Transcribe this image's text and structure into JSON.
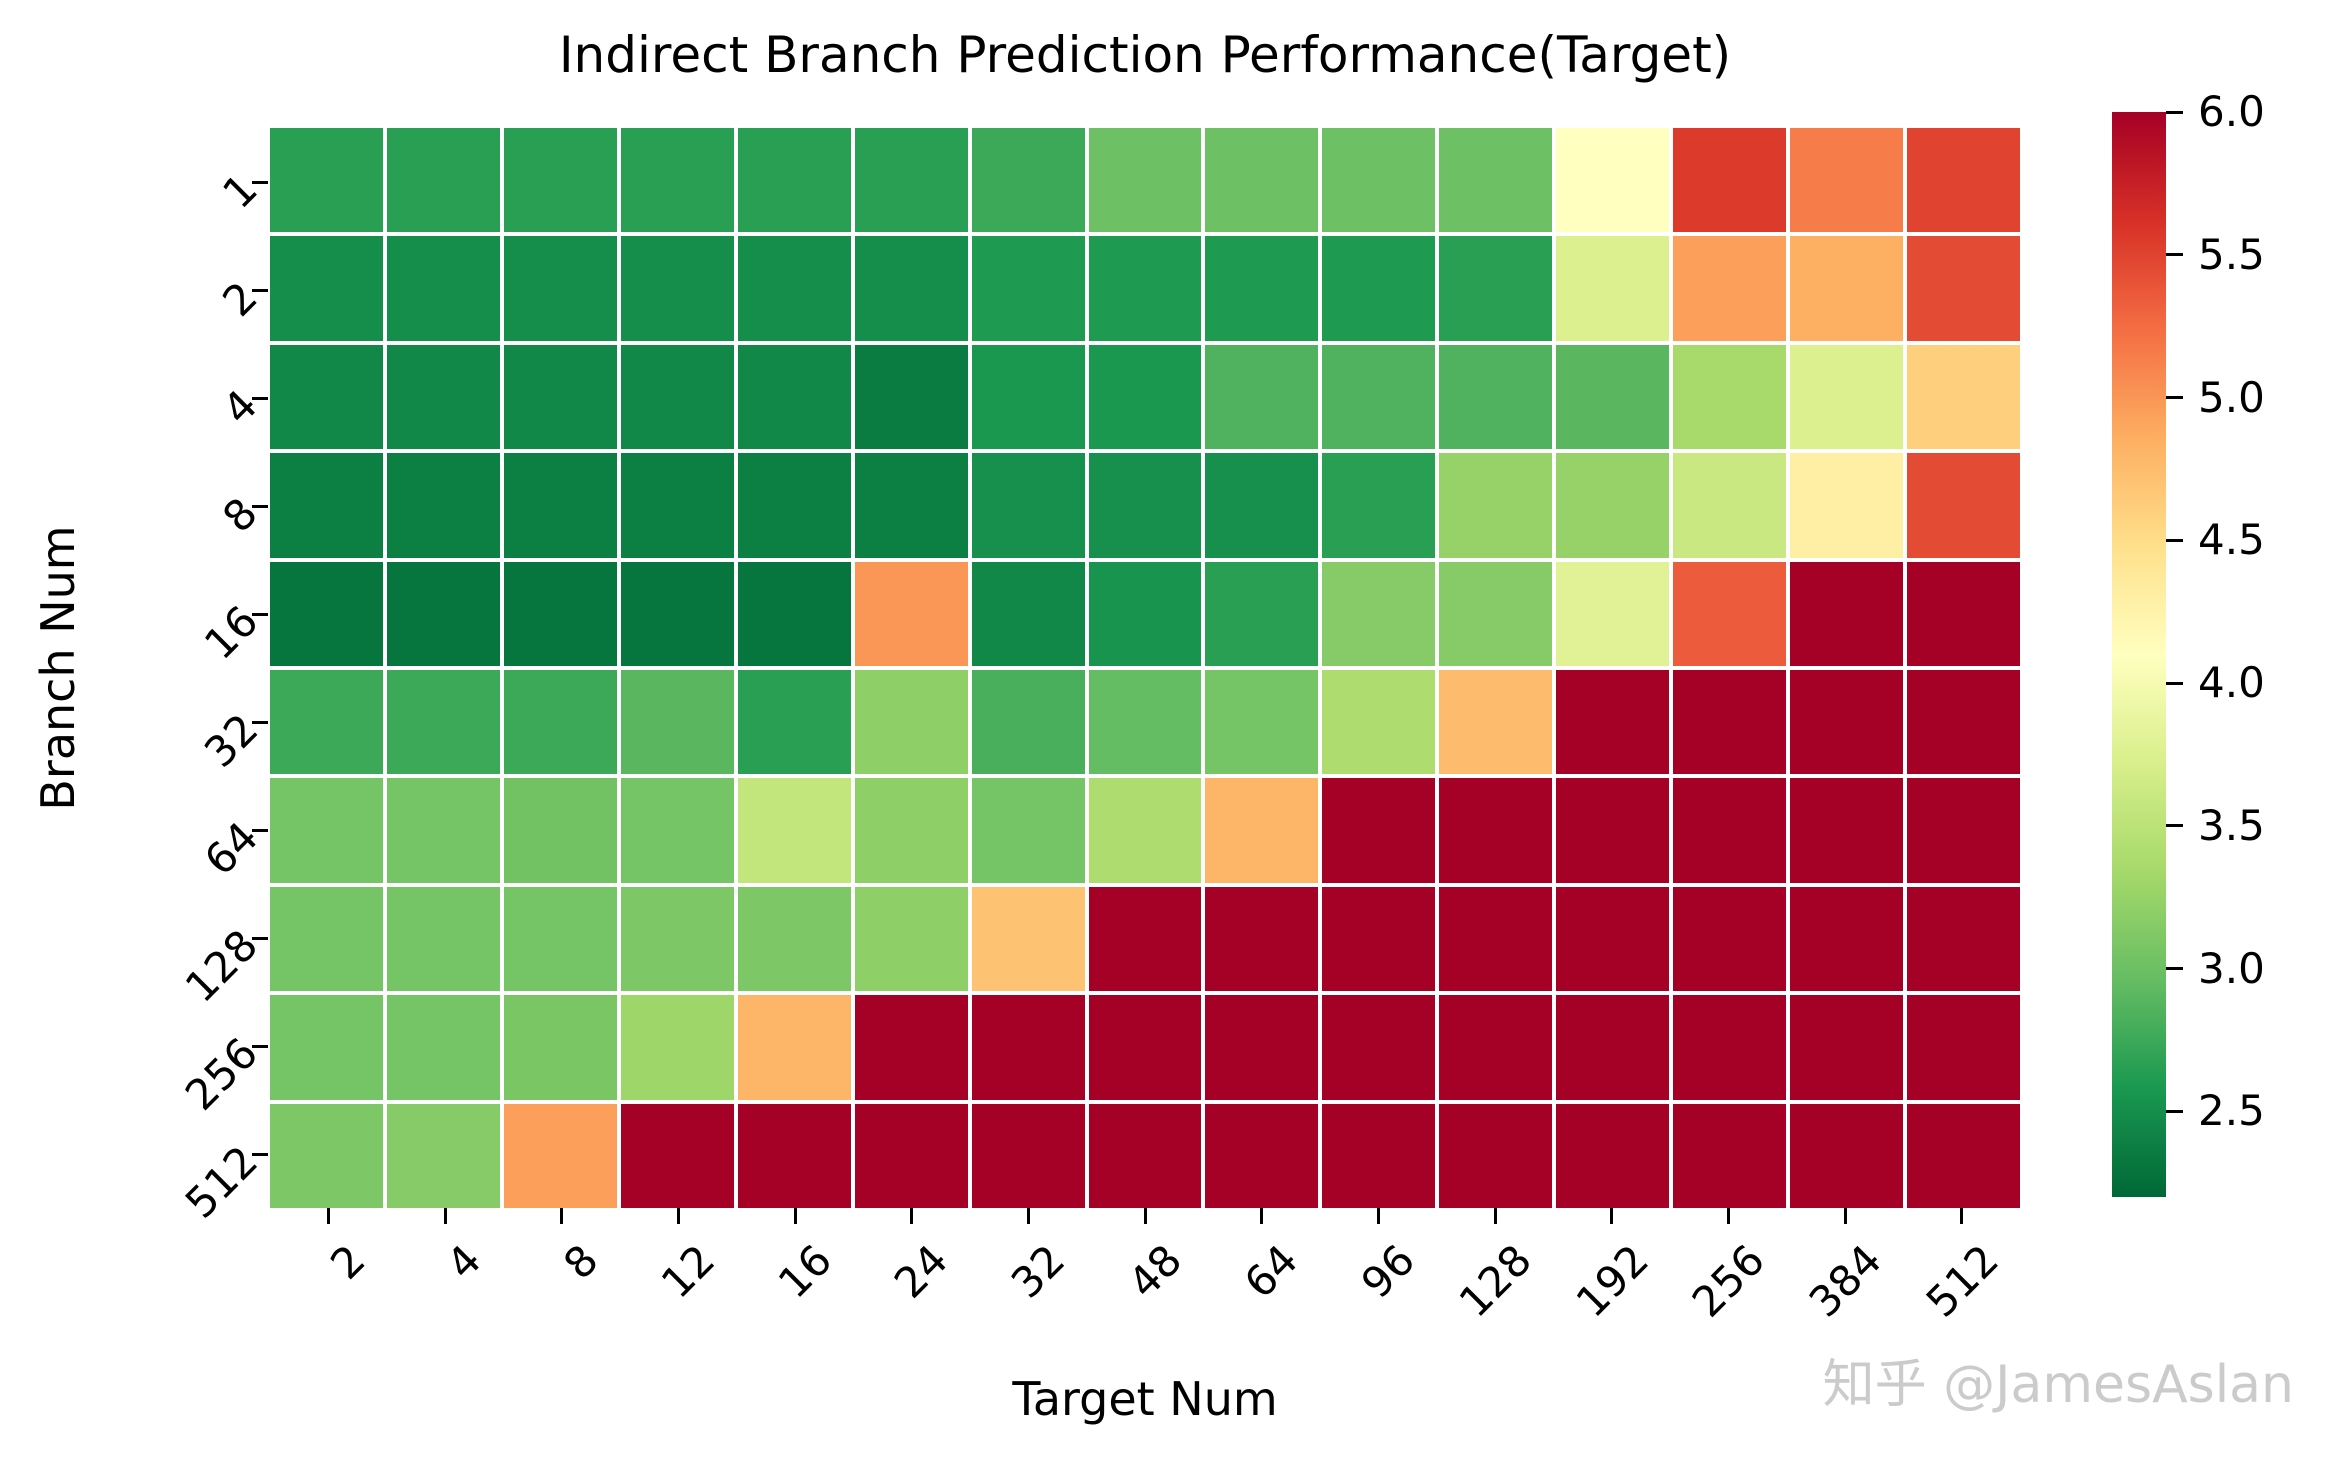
{
  "figure": {
    "background": "#ffffff",
    "watermark": "知乎 @JamesAslan",
    "watermark_color": "#cbcbcb"
  },
  "chart_data": {
    "type": "heatmap",
    "title": "Indirect Branch Prediction Performance(Target)",
    "xlabel": "Target Num",
    "ylabel": "Branch Num",
    "x_categories": [
      "2",
      "4",
      "8",
      "12",
      "16",
      "24",
      "32",
      "48",
      "64",
      "96",
      "128",
      "192",
      "256",
      "384",
      "512"
    ],
    "y_categories": [
      "1",
      "2",
      "4",
      "8",
      "16",
      "32",
      "64",
      "128",
      "256",
      "512"
    ],
    "values": [
      [
        2.65,
        2.65,
        2.65,
        2.65,
        2.65,
        2.65,
        2.75,
        3.0,
        3.0,
        3.0,
        3.0,
        4.1,
        5.55,
        5.15,
        5.5
      ],
      [
        2.5,
        2.5,
        2.5,
        2.5,
        2.5,
        2.5,
        2.6,
        2.6,
        2.6,
        2.6,
        2.65,
        3.75,
        4.95,
        4.85,
        5.45
      ],
      [
        2.45,
        2.45,
        2.45,
        2.45,
        2.45,
        2.35,
        2.58,
        2.58,
        2.85,
        2.85,
        2.85,
        2.9,
        3.35,
        3.75,
        4.6
      ],
      [
        2.38,
        2.38,
        2.38,
        2.38,
        2.38,
        2.38,
        2.52,
        2.52,
        2.52,
        2.65,
        3.25,
        3.25,
        3.6,
        4.3,
        5.45
      ],
      [
        2.3,
        2.3,
        2.3,
        2.3,
        2.3,
        5.0,
        2.45,
        2.55,
        2.65,
        3.15,
        3.15,
        3.8,
        5.35,
        6.0,
        6.0
      ],
      [
        2.75,
        2.75,
        2.75,
        2.9,
        2.65,
        3.2,
        2.82,
        2.95,
        3.05,
        3.4,
        4.75,
        6.0,
        6.0,
        6.0,
        6.0
      ],
      [
        3.05,
        3.05,
        3.03,
        3.05,
        3.55,
        3.2,
        3.05,
        3.4,
        4.8,
        6.0,
        6.0,
        6.0,
        6.0,
        6.0,
        6.0
      ],
      [
        3.05,
        3.05,
        3.05,
        3.1,
        3.1,
        3.2,
        4.7,
        6.0,
        6.0,
        6.0,
        6.0,
        6.0,
        6.0,
        6.0,
        6.0
      ],
      [
        3.05,
        3.05,
        3.08,
        3.3,
        4.8,
        6.0,
        6.0,
        6.0,
        6.0,
        6.0,
        6.0,
        6.0,
        6.0,
        6.0,
        6.0
      ],
      [
        3.1,
        3.15,
        4.95,
        6.0,
        6.0,
        6.0,
        6.0,
        6.0,
        6.0,
        6.0,
        6.0,
        6.0,
        6.0,
        6.0,
        6.0
      ]
    ],
    "vmin": 2.2,
    "vmax": 6.0,
    "colormap": "RdYlGn_r",
    "palette_low_to_high": [
      "#006837",
      "#1a9850",
      "#66bd63",
      "#a6d96a",
      "#d9ef8b",
      "#ffffbf",
      "#fee08b",
      "#fdae61",
      "#f46d43",
      "#d73027",
      "#a50026"
    ],
    "grid_line_color": "#ffffff",
    "legend_position": "right-colorbar",
    "colorbar_ticks": [
      6.0,
      5.5,
      5.0,
      4.5,
      4.0,
      3.5,
      3.0,
      2.5
    ],
    "colorbar_tick_labels": [
      "6.0",
      "5.5",
      "5.0",
      "4.5",
      "4.0",
      "3.5",
      "3.0",
      "2.5"
    ]
  }
}
